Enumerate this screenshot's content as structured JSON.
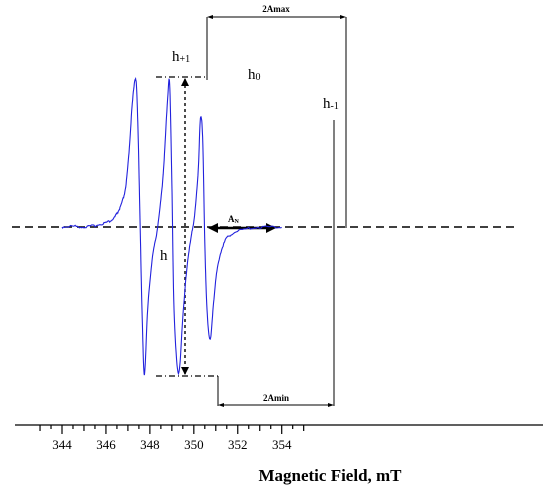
{
  "chart_data": {
    "type": "line",
    "xlabel": "Magnetic Field, mT",
    "ylabel": "",
    "title": "",
    "xlim": [
      343.3,
      354.7
    ],
    "ylim": [
      -1.0,
      1.0
    ],
    "x_ticks": [
      "344",
      "346",
      "348",
      "350",
      "352",
      "354"
    ],
    "grid": false,
    "legend": "none",
    "series": [
      {
        "color": "#2222dd",
        "x": [
          344.0,
          344.5,
          345.0,
          345.5,
          346.0,
          346.3,
          346.5,
          346.7,
          346.9,
          347.05,
          347.2,
          347.35,
          347.45,
          347.55,
          347.65,
          347.75,
          347.9,
          348.1,
          348.3,
          348.5,
          348.65,
          348.8,
          348.9,
          349.0,
          349.1,
          349.3,
          349.5,
          349.7,
          349.9,
          350.05,
          350.2,
          350.3,
          350.4,
          350.5,
          350.6,
          350.75,
          350.9,
          351.1,
          351.4,
          351.8,
          352.5,
          353.2,
          354.0
        ],
        "y": [
          0.0,
          0.005,
          0.0,
          0.01,
          0.03,
          0.05,
          0.09,
          0.15,
          0.27,
          0.5,
          0.82,
          0.99,
          0.7,
          0.05,
          -0.6,
          -0.98,
          -0.55,
          -0.22,
          -0.05,
          0.18,
          0.45,
          0.84,
          0.95,
          0.3,
          -0.55,
          -0.98,
          -0.6,
          -0.25,
          -0.05,
          0.1,
          0.38,
          0.72,
          0.6,
          -0.1,
          -0.55,
          -0.75,
          -0.5,
          -0.25,
          -0.1,
          -0.04,
          -0.01,
          0.0,
          0.0
        ]
      }
    ],
    "annotations": {
      "h_plus1": {
        "main": "h",
        "sub": "+1"
      },
      "h0": {
        "main": "h",
        "sub": "0"
      },
      "h_minus1": {
        "main": "h",
        "sub": "-1"
      },
      "h": "h",
      "an": {
        "main": "A",
        "sub": "N"
      },
      "two_amax": "2Amax",
      "two_amin": "2Amin"
    }
  }
}
